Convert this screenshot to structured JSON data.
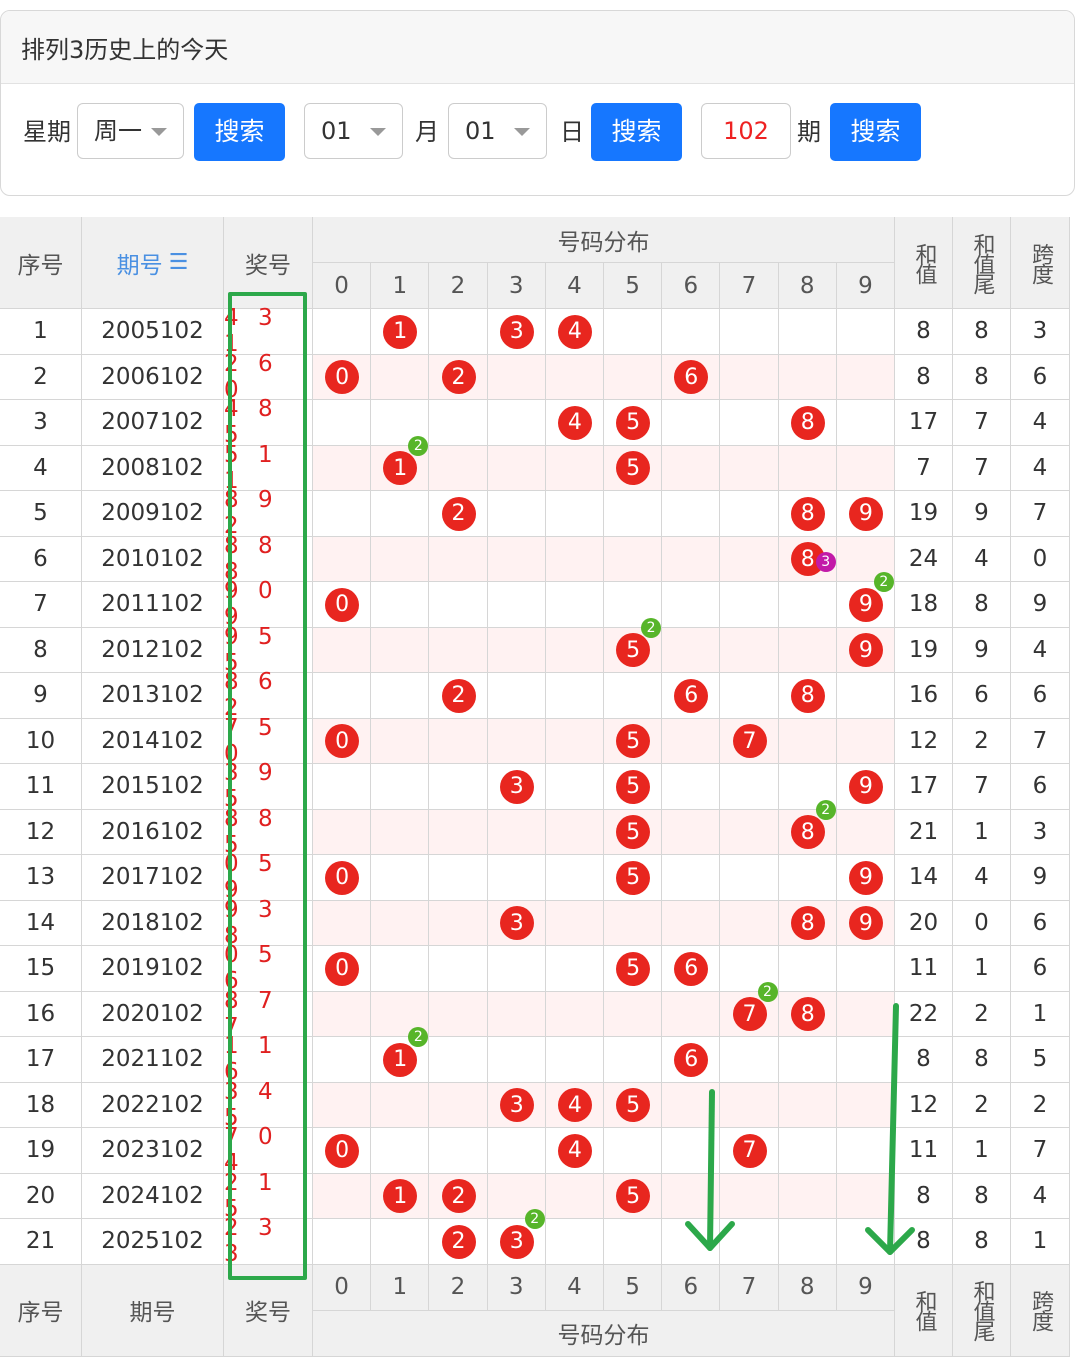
{
  "panel": {
    "title": "排列3历史上的今天",
    "weekday_label": "星期",
    "weekday_value": "周一",
    "search_label": "搜索",
    "month_value": "01",
    "month_label": "月",
    "day_value": "01",
    "day_label": "日",
    "issue_value": "102",
    "issue_label": "期"
  },
  "table": {
    "headers": {
      "seq": "序号",
      "issue": "期号",
      "sort_icon": "sort-icon",
      "prize": "奖号",
      "dist": "号码分布",
      "sum": "和值",
      "sum_tail": "和值尾",
      "span": "跨度"
    },
    "digits": [
      "0",
      "1",
      "2",
      "3",
      "4",
      "5",
      "6",
      "7",
      "8",
      "9"
    ],
    "rows": [
      {
        "seq": "1",
        "issue": "2005102",
        "prize": "4 3 1",
        "nums": [
          4,
          3,
          1
        ],
        "badges": [],
        "sum": "8",
        "tail": "8",
        "span": "3"
      },
      {
        "seq": "2",
        "issue": "2006102",
        "prize": "2 6 0",
        "nums": [
          2,
          6,
          0
        ],
        "badges": [],
        "sum": "8",
        "tail": "8",
        "span": "6"
      },
      {
        "seq": "3",
        "issue": "2007102",
        "prize": "4 8 5",
        "nums": [
          4,
          8,
          5
        ],
        "badges": [],
        "sum": "17",
        "tail": "7",
        "span": "4"
      },
      {
        "seq": "4",
        "issue": "2008102",
        "prize": "5 1 1",
        "nums": [
          5,
          1
        ],
        "badges": [
          {
            "digit": 1,
            "count": "2",
            "color": "green"
          }
        ],
        "sum": "7",
        "tail": "7",
        "span": "4"
      },
      {
        "seq": "5",
        "issue": "2009102",
        "prize": "8 9 2",
        "nums": [
          8,
          9,
          2
        ],
        "badges": [],
        "sum": "19",
        "tail": "9",
        "span": "7"
      },
      {
        "seq": "6",
        "issue": "2010102",
        "prize": "8 8 8",
        "nums": [
          8
        ],
        "badges": [
          {
            "digit": 8,
            "count": "3",
            "color": "purple"
          }
        ],
        "sum": "24",
        "tail": "4",
        "span": "0"
      },
      {
        "seq": "7",
        "issue": "2011102",
        "prize": "9 0 9",
        "nums": [
          9,
          0
        ],
        "badges": [
          {
            "digit": 9,
            "count": "2",
            "color": "green"
          }
        ],
        "sum": "18",
        "tail": "8",
        "span": "9"
      },
      {
        "seq": "8",
        "issue": "2012102",
        "prize": "9 5 5",
        "nums": [
          9,
          5
        ],
        "badges": [
          {
            "digit": 5,
            "count": "2",
            "color": "green"
          }
        ],
        "sum": "19",
        "tail": "9",
        "span": "4"
      },
      {
        "seq": "9",
        "issue": "2013102",
        "prize": "8 6 2",
        "nums": [
          8,
          6,
          2
        ],
        "badges": [],
        "sum": "16",
        "tail": "6",
        "span": "6"
      },
      {
        "seq": "10",
        "issue": "2014102",
        "prize": "7 5 0",
        "nums": [
          7,
          5,
          0
        ],
        "badges": [],
        "sum": "12",
        "tail": "2",
        "span": "7"
      },
      {
        "seq": "11",
        "issue": "2015102",
        "prize": "3 9 5",
        "nums": [
          3,
          9,
          5
        ],
        "badges": [],
        "sum": "17",
        "tail": "7",
        "span": "6"
      },
      {
        "seq": "12",
        "issue": "2016102",
        "prize": "8 8 5",
        "nums": [
          8,
          5
        ],
        "badges": [
          {
            "digit": 8,
            "count": "2",
            "color": "green"
          }
        ],
        "sum": "21",
        "tail": "1",
        "span": "3"
      },
      {
        "seq": "13",
        "issue": "2017102",
        "prize": "0 5 9",
        "nums": [
          0,
          5,
          9
        ],
        "badges": [],
        "sum": "14",
        "tail": "4",
        "span": "9"
      },
      {
        "seq": "14",
        "issue": "2018102",
        "prize": "9 3 8",
        "nums": [
          9,
          3,
          8
        ],
        "badges": [],
        "sum": "20",
        "tail": "0",
        "span": "6"
      },
      {
        "seq": "15",
        "issue": "2019102",
        "prize": "0 5 6",
        "nums": [
          0,
          5,
          6
        ],
        "badges": [],
        "sum": "11",
        "tail": "1",
        "span": "6"
      },
      {
        "seq": "16",
        "issue": "2020102",
        "prize": "8 7 7",
        "nums": [
          8,
          7
        ],
        "badges": [
          {
            "digit": 7,
            "count": "2",
            "color": "green"
          }
        ],
        "sum": "22",
        "tail": "2",
        "span": "1"
      },
      {
        "seq": "17",
        "issue": "2021102",
        "prize": "1 1 6",
        "nums": [
          1,
          6
        ],
        "badges": [
          {
            "digit": 1,
            "count": "2",
            "color": "green"
          }
        ],
        "sum": "8",
        "tail": "8",
        "span": "5"
      },
      {
        "seq": "18",
        "issue": "2022102",
        "prize": "3 4 5",
        "nums": [
          3,
          4,
          5
        ],
        "badges": [],
        "sum": "12",
        "tail": "2",
        "span": "2"
      },
      {
        "seq": "19",
        "issue": "2023102",
        "prize": "7 0 4",
        "nums": [
          7,
          0,
          4
        ],
        "badges": [],
        "sum": "11",
        "tail": "1",
        "span": "7"
      },
      {
        "seq": "20",
        "issue": "2024102",
        "prize": "2 1 5",
        "nums": [
          2,
          1,
          5
        ],
        "badges": [],
        "sum": "8",
        "tail": "8",
        "span": "4"
      },
      {
        "seq": "21",
        "issue": "2025102",
        "prize": "2 3 3",
        "nums": [
          2,
          3
        ],
        "badges": [
          {
            "digit": 3,
            "count": "2",
            "color": "green"
          }
        ],
        "sum": "8",
        "tail": "8",
        "span": "1"
      }
    ]
  },
  "colors": {
    "ball": "#e8261f",
    "badge_green": "#57b52a",
    "badge_purple": "#c21aa8",
    "accent": "#1677ff",
    "annotation": "#2ca84a"
  }
}
